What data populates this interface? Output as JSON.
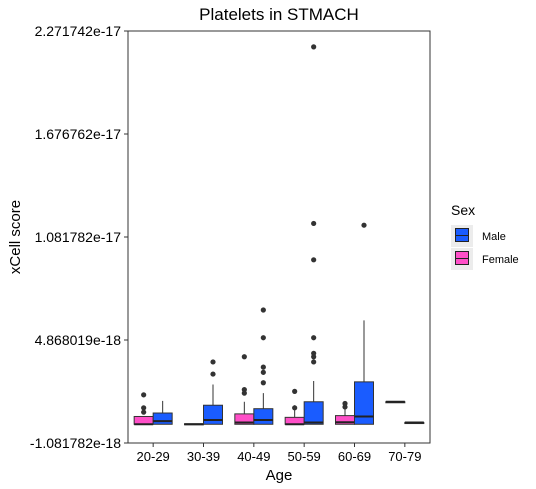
{
  "chart_data": {
    "type": "boxplot",
    "title": "Platelets in STMACH",
    "xlabel": "Age",
    "ylabel": "xCell score",
    "ylim": [
      -1.081782e-18,
      2.271742e-17
    ],
    "y_ticks": [
      "-1.081782e-18",
      "4.868019e-18",
      "1.081782e-17",
      "1.676762e-17",
      "2.271742e-17"
    ],
    "y_tick_values": [
      -1.081782e-18,
      4.868019e-18,
      1.081782e-17,
      1.676762e-17,
      2.271742e-17
    ],
    "categories": [
      "20-29",
      "30-39",
      "40-49",
      "50-59",
      "60-69",
      "70-79"
    ],
    "legend": {
      "title": "Sex",
      "position": "right"
    },
    "series": [
      {
        "name": "Female",
        "color": "#FF4FC8",
        "boxes": [
          {
            "category": "20-29",
            "min": 0.0,
            "q1": 0.0,
            "median": 0.0,
            "q3": 4.5e-19,
            "max": 4.5e-19,
            "outliers": [
              1.7e-18,
              9.5e-19,
              7e-19
            ]
          },
          {
            "category": "30-39",
            "min": 0.0,
            "q1": 0.0,
            "median": 0.0,
            "q3": 3e-20,
            "max": 3e-20,
            "outliers": []
          },
          {
            "category": "40-49",
            "min": 0.0,
            "q1": 0.0,
            "median": 1e-19,
            "q3": 6e-19,
            "max": 1.3e-18,
            "outliers": [
              3.9e-18,
              2e-18,
              1.8e-18
            ]
          },
          {
            "category": "50-59",
            "min": 0.0,
            "q1": 0.0,
            "median": 0.0,
            "q3": 4e-19,
            "max": 1.1e-18,
            "outliers": [
              1.9e-18,
              9.5e-19
            ]
          },
          {
            "category": "60-69",
            "min": 0.0,
            "q1": 0.0,
            "median": 1.2e-19,
            "q3": 5e-19,
            "max": 1.2e-18,
            "outliers": [
              1.2e-18,
              1e-18
            ]
          },
          {
            "category": "70-79",
            "min": 1.3e-18,
            "q1": 1.3e-18,
            "median": 1.3e-18,
            "q3": 1.3e-18,
            "max": 1.3e-18,
            "outliers": []
          }
        ]
      },
      {
        "name": "Male",
        "color": "#1A5CFF",
        "boxes": [
          {
            "category": "20-29",
            "min": 0.0,
            "q1": 0.0,
            "median": 1.8e-19,
            "q3": 6.5e-19,
            "max": 1.35e-18,
            "outliers": []
          },
          {
            "category": "30-39",
            "min": 0.0,
            "q1": 0.0,
            "median": 2.5e-19,
            "q3": 1.1e-18,
            "max": 2.3e-18,
            "outliers": [
              3.6e-18,
              2.9e-18
            ]
          },
          {
            "category": "40-49",
            "min": 0.0,
            "q1": 0.0,
            "median": 2.5e-19,
            "q3": 9e-19,
            "max": 1.8e-18,
            "outliers": [
              6.6e-18,
              5e-18,
              3.3e-18,
              3e-18,
              2.4e-18
            ]
          },
          {
            "category": "50-59",
            "min": 0.0,
            "q1": 0.0,
            "median": 1e-19,
            "q3": 1.3e-18,
            "max": 2.5e-18,
            "outliers": [
              2.18e-17,
              1.16e-17,
              9.5e-18,
              5e-18,
              4.1e-18,
              3.9e-18,
              3.6e-18
            ]
          },
          {
            "category": "60-69",
            "min": 0.0,
            "q1": 0.0,
            "median": 4.5e-19,
            "q3": 2.45e-18,
            "max": 6e-18,
            "outliers": [
              1.15e-17
            ]
          },
          {
            "category": "70-79",
            "min": 1e-19,
            "q1": 1e-19,
            "median": 1e-19,
            "q3": 1e-19,
            "max": 1e-19,
            "outliers": []
          }
        ]
      }
    ]
  }
}
